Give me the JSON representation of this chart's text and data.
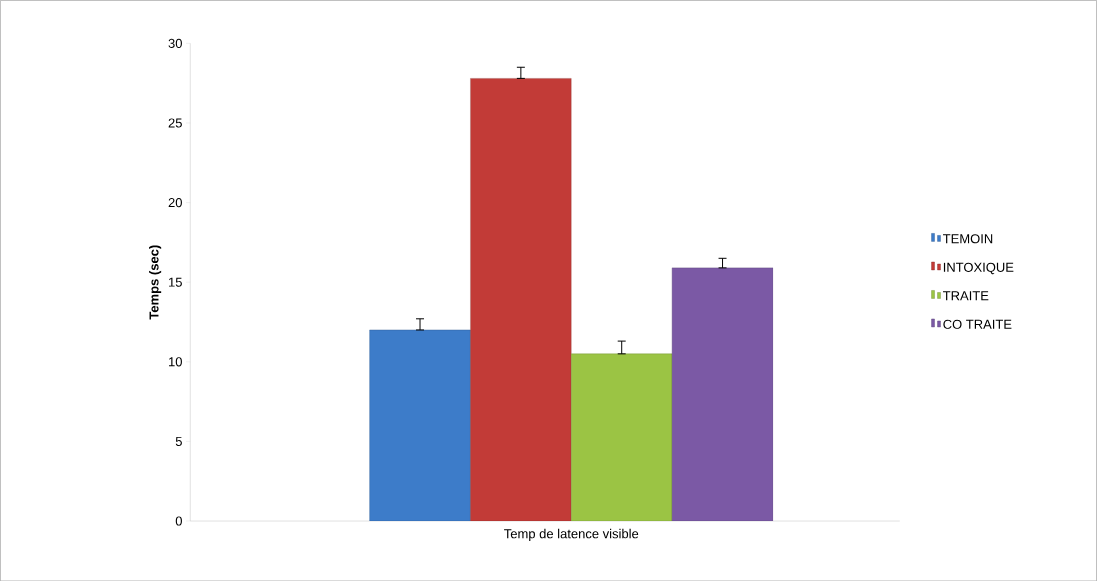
{
  "chart_data": {
    "type": "bar",
    "ylabel": "Temps (sec)",
    "categories": [
      "Temp de latence visible"
    ],
    "series": [
      {
        "name": "TEMOIN",
        "color": "#3d7cc9",
        "values": [
          12.0
        ],
        "errors": [
          [
            12.0,
            12.7
          ]
        ]
      },
      {
        "name": "INTOXIQUE",
        "color": "#c23b37",
        "values": [
          27.8
        ],
        "errors": [
          [
            27.8,
            28.5
          ]
        ]
      },
      {
        "name": "TRAITE",
        "color": "#9bc444",
        "values": [
          10.5
        ],
        "errors": [
          [
            10.5,
            11.3
          ]
        ]
      },
      {
        "name": "CO TRAITE",
        "color": "#7b59a5",
        "values": [
          15.9
        ],
        "errors": [
          [
            15.9,
            16.5
          ]
        ]
      }
    ],
    "ylim": [
      0,
      30
    ],
    "yticks": [
      0,
      5,
      10,
      15,
      20,
      25,
      30
    ],
    "legend": "right",
    "grid": false
  }
}
